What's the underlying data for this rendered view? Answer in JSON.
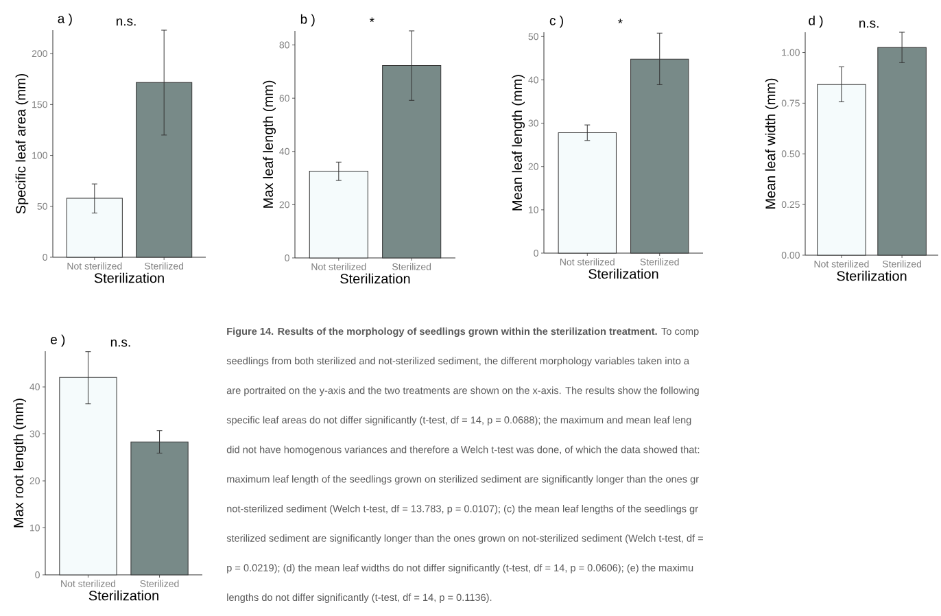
{
  "chart_data": [
    {
      "type": "bar",
      "title": "a )",
      "categories": [
        "Not sterilized",
        "Sterilized"
      ],
      "values": [
        58,
        171.6
      ],
      "colors": [
        "#f5fbfc",
        "#788a88"
      ],
      "errors": [
        [
          43.4,
          72
        ],
        [
          120,
          223
        ]
      ],
      "ylim": [
        0,
        223
      ],
      "yticks": [
        0,
        50,
        100,
        150,
        200
      ],
      "xlabel": "Sterilization",
      "ylabel": "Specific leaf area (mm)",
      "annotations": [
        "n.s."
      ]
    },
    {
      "type": "bar",
      "title": "b )",
      "categories": [
        "Not sterilized",
        "Sterilized"
      ],
      "values": [
        32.6,
        72.3
      ],
      "colors": [
        "#f5fbfc",
        "#788a88"
      ],
      "errors": [
        [
          29.1,
          36
        ],
        [
          59.2,
          85.3
        ]
      ],
      "ylim": [
        0,
        85.3
      ],
      "yticks": [
        0,
        20,
        40,
        60,
        80
      ],
      "xlabel": "Sterilization",
      "ylabel": "Max leaf length (mm)",
      "annotations": [
        "*"
      ]
    },
    {
      "type": "bar",
      "title": "c )",
      "categories": [
        "Not sterilized",
        "Sterilized"
      ],
      "values": [
        27.8,
        44.8
      ],
      "colors": [
        "#f5fbfc",
        "#788a88"
      ],
      "errors": [
        [
          26,
          29.6
        ],
        [
          38.9,
          50.8
        ]
      ],
      "ylim": [
        0,
        51
      ],
      "yticks": [
        0,
        10,
        20,
        30,
        40,
        50
      ],
      "xlabel": "Sterilization",
      "ylabel": "Mean leaf length (mm)",
      "annotations": [
        "*"
      ]
    },
    {
      "type": "bar",
      "title": "d )",
      "categories": [
        "Not sterilized",
        "Sterilized"
      ],
      "values": [
        0.842,
        1.025
      ],
      "colors": [
        "#f5fbfc",
        "#788a88"
      ],
      "errors": [
        [
          0.757,
          0.929
        ],
        [
          0.95,
          1.1
        ]
      ],
      "ylim": [
        0,
        1.1
      ],
      "yticks": [
        {
          "value": 0,
          "label": "0.00"
        },
        {
          "value": 0.25,
          "label": "0.25"
        },
        {
          "value": 0.5,
          "label": "0.50"
        },
        {
          "value": 0.75,
          "label": "0.75"
        },
        {
          "value": 1,
          "label": "1.00"
        }
      ],
      "xlabel": "Sterilization",
      "ylabel": "Mean leaf width (mm)",
      "annotations": [
        "n.s."
      ]
    },
    {
      "type": "bar",
      "title": "e )",
      "categories": [
        "Not sterilized",
        "Sterilized"
      ],
      "values": [
        42,
        28.3
      ],
      "colors": [
        "#f5fbfc",
        "#788a88"
      ],
      "errors": [
        [
          36.4,
          47.5
        ],
        [
          25.9,
          30.7
        ]
      ],
      "ylim": [
        0,
        47.6
      ],
      "yticks": [
        0,
        10,
        20,
        30,
        40
      ],
      "xlabel": "Sterilization",
      "ylabel": "Max root length (mm)",
      "annotations": [
        "n.s."
      ]
    },
    {
      "type": "other",
      "annotations": [
        "**Figure 14. Results of the morphology of seedlings grown within the sterilization treatment.** To comp",
        "seedlings from both sterilized and not-sterilized sediment, the different morphology variables taken into a",
        "are portraited on the y-axis and the two treatments are shown on the x-axis. The results show the following",
        "specific leaf areas do not differ significantly (t-test, df = 14, p = 0.0688); the maximum and mean leaf leng",
        "did not have homogenous variances and therefore a Welch t-test was done, of which the data showed that:",
        "maximum leaf length of the seedlings grown on sterilized sediment are significantly longer than the ones gr",
        "not-sterilized sediment (Welch t-test, df = 13.783, p = 0.0107); (c) the mean leaf lengths of the seedlings gr",
        "sterilized sediment are significantly longer than the ones grown on not-sterilized sediment (Welch t-test, df =",
        "p = 0.0219); (d) the mean leaf widths do not differ significantly (t-test, df = 14, p = 0.0606); (e) the maximu",
        "lengths do not differ significantly (t-test, df = 14, p = 0.1136)."
      ]
    }
  ]
}
